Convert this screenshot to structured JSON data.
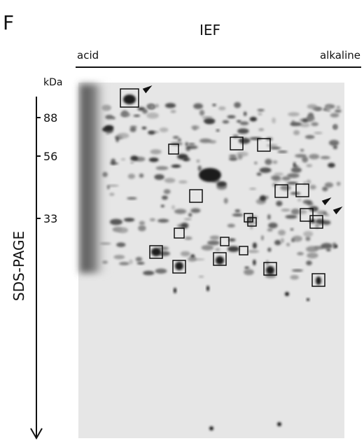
{
  "panel_label": "F",
  "x_axis": {
    "title": "IEF",
    "left_label": "acid",
    "right_label": "alkaline"
  },
  "y_axis": {
    "title": "SDS-PAGE",
    "unit": "kDa",
    "markers": [
      "88",
      "56",
      "33"
    ]
  }
}
